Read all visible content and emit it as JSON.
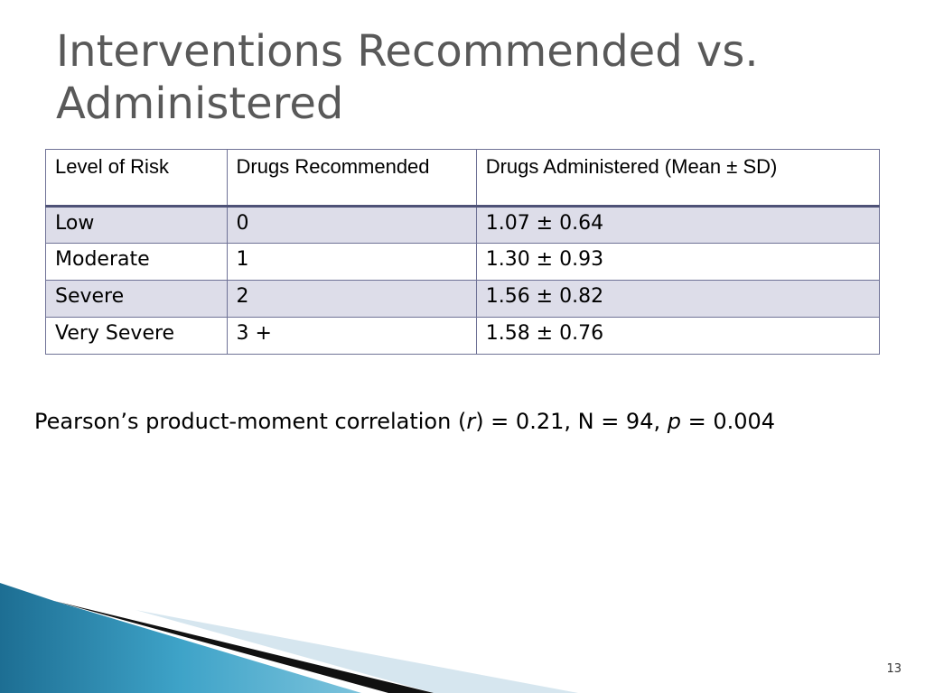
{
  "slide": {
    "title": "Interventions Recommended vs. Administered",
    "number": "13"
  },
  "table": {
    "headers": [
      "Level of Risk",
      "Drugs Recommended",
      "Drugs Administered (Mean ± SD)"
    ],
    "rows": [
      [
        "Low",
        "0",
        "1.07 ± 0.64"
      ],
      [
        "Moderate",
        "1",
        "1.30 ± 0.93"
      ],
      [
        "Severe",
        "2",
        "1.56 ± 0.82"
      ],
      [
        "Very Severe",
        "3 +",
        "1.58 ± 0.76"
      ]
    ]
  },
  "stats": {
    "prefix": "Pearson’s product-moment correlation (",
    "r_symbol": "r",
    "r_part": ") = 0.21, N = 94, ",
    "p_symbol": "p",
    "p_part": " = 0.004"
  },
  "colors": {
    "title": "#595959",
    "table_border": "#6f7296",
    "table_band": "#dddde9",
    "deco_teal": "#2a8fb5",
    "deco_light": "#d6e6ef"
  }
}
